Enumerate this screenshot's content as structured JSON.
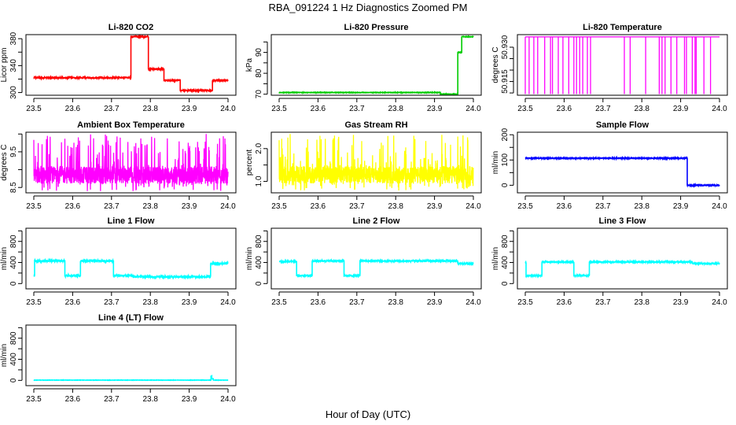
{
  "chart_data": {
    "title": "RBA_091224  1 Hz Diagnostics Zoomed PM",
    "xlabel": "Hour of Day (UTC)",
    "xlim": [
      23.5,
      24.0
    ],
    "xticks": [
      23.5,
      23.6,
      23.7,
      23.8,
      23.9,
      24.0
    ],
    "xtick_labels": [
      "23.5",
      "23.6",
      "23.7",
      "23.8",
      "23.9",
      "24.0"
    ],
    "panels": [
      {
        "type": "line",
        "title": "Li-820 CO2",
        "ylabel": "Licor ppm",
        "color": "#ff0000",
        "ylim": [
          296,
          386
        ],
        "yticks": [
          300,
          320,
          340,
          360,
          380
        ],
        "ytick_labels": [
          "300",
          "",
          "340",
          "",
          "380"
        ],
        "noise": 0.8,
        "segments": [
          [
            23.5,
            23.75,
            322
          ],
          [
            23.75,
            23.795,
            383
          ],
          [
            23.795,
            23.835,
            335
          ],
          [
            23.835,
            23.877,
            318
          ],
          [
            23.877,
            23.96,
            303
          ],
          [
            23.96,
            24.0,
            318
          ]
        ]
      },
      {
        "type": "line",
        "title": "Li-820 Pressure",
        "ylabel": "kPa",
        "color": "#00cc00",
        "ylim": [
          69.5,
          98.5
        ],
        "yticks": [
          70,
          75,
          80,
          85,
          90,
          95
        ],
        "ytick_labels": [
          "70",
          "",
          "80",
          "",
          "90",
          ""
        ],
        "noise": 0.1,
        "segments": [
          [
            23.5,
            23.915,
            70.8
          ],
          [
            23.915,
            23.96,
            70.0
          ],
          [
            23.96,
            23.97,
            90.0
          ],
          [
            23.97,
            24.0,
            97.5
          ]
        ]
      },
      {
        "type": "drops",
        "title": "Li-820 Temperature",
        "ylabel": "degrees C",
        "color": "#ff00ff",
        "ylim": [
          50.909,
          50.9355
        ],
        "yticks": [
          50.91,
          50.915,
          50.92,
          50.925,
          50.93
        ],
        "ytick_labels": [
          "",
          "50.915",
          "",
          "",
          "50.930"
        ],
        "baseline": 50.9345,
        "drop_value": 50.9095,
        "drops": [
          23.5,
          23.51,
          23.522,
          23.532,
          23.55,
          23.565,
          23.57,
          23.585,
          23.597,
          23.612,
          23.625,
          23.632,
          23.64,
          23.648,
          23.66,
          23.668,
          23.755,
          23.77,
          23.81,
          23.845,
          23.852,
          23.86,
          23.875,
          23.89,
          23.91,
          23.915,
          23.93,
          23.937,
          23.94,
          23.96,
          23.977
        ]
      },
      {
        "type": "spiky",
        "title": "Ambient Box Temperature",
        "ylabel": "degrees C",
        "color": "#ff00ff",
        "ylim": [
          8.35,
          10.05
        ],
        "yticks": [
          8.5,
          9.0,
          9.5,
          10.0
        ],
        "ytick_labels": [
          "8.5",
          "",
          "9.5",
          ""
        ],
        "baseline": 8.85,
        "low": 8.4,
        "high": 10.0
      },
      {
        "type": "spiky",
        "title": "Gas Stream RH",
        "ylabel": "percent",
        "color": "#ffff00",
        "ylim": [
          0.65,
          2.5
        ],
        "yticks": [
          1.0,
          1.5,
          2.0
        ],
        "ytick_labels": [
          "1.0",
          "",
          "2.0"
        ],
        "baseline": 1.2,
        "low": 0.72,
        "high": 2.45
      },
      {
        "type": "line",
        "title": "Sample Flow",
        "ylabel": "ml/min",
        "color": "#0000ff",
        "ylim": [
          -30,
          210
        ],
        "yticks": [
          0,
          50,
          100,
          150,
          200
        ],
        "ytick_labels": [
          "0",
          "",
          "100",
          "",
          "200"
        ],
        "noise": 1.5,
        "segments": [
          [
            23.5,
            23.917,
            107
          ],
          [
            23.917,
            24.0,
            0
          ]
        ]
      },
      {
        "type": "line",
        "title": "Line 1 Flow",
        "ylabel": "ml/min",
        "color": "#00ffff",
        "ylim": [
          -100,
          1050
        ],
        "yticks": [
          0,
          200,
          400,
          600,
          800,
          1000
        ],
        "ytick_labels": [
          "0",
          "",
          "400",
          "",
          "800",
          ""
        ],
        "noise": 20,
        "segments": [
          [
            23.5,
            23.502,
            150
          ],
          [
            23.502,
            23.58,
            430
          ],
          [
            23.58,
            23.62,
            150
          ],
          [
            23.62,
            23.705,
            430
          ],
          [
            23.705,
            23.755,
            150
          ],
          [
            23.755,
            23.955,
            130
          ],
          [
            23.955,
            24.0,
            380
          ]
        ]
      },
      {
        "type": "line",
        "title": "Line 2 Flow",
        "ylabel": "ml/min",
        "color": "#00ffff",
        "ylim": [
          -100,
          1050
        ],
        "yticks": [
          0,
          200,
          400,
          600,
          800,
          1000
        ],
        "ytick_labels": [
          "0",
          "",
          "400",
          "",
          "800",
          ""
        ],
        "noise": 10,
        "segments": [
          [
            23.5,
            23.545,
            420
          ],
          [
            23.545,
            23.585,
            150
          ],
          [
            23.585,
            23.667,
            430
          ],
          [
            23.667,
            23.708,
            150
          ],
          [
            23.708,
            23.96,
            430
          ],
          [
            23.96,
            24.0,
            380
          ]
        ]
      },
      {
        "type": "line",
        "title": "Line 3 Flow",
        "ylabel": "ml/min",
        "color": "#00ffff",
        "ylim": [
          -100,
          1050
        ],
        "yticks": [
          0,
          200,
          400,
          600,
          800,
          1000
        ],
        "ytick_labels": [
          "0",
          "",
          "400",
          "",
          "800",
          ""
        ],
        "noise": 10,
        "segments": [
          [
            23.5,
            23.502,
            390
          ],
          [
            23.502,
            23.543,
            150
          ],
          [
            23.543,
            23.625,
            410
          ],
          [
            23.625,
            23.665,
            150
          ],
          [
            23.665,
            23.93,
            410
          ],
          [
            23.93,
            24.0,
            380
          ]
        ]
      },
      {
        "type": "line",
        "title": "Line 4 (LT) Flow",
        "ylabel": "ml/min",
        "color": "#00ffff",
        "ylim": [
          -100,
          1050
        ],
        "yticks": [
          0,
          200,
          400,
          600,
          800,
          1000
        ],
        "ytick_labels": [
          "0",
          "",
          "400",
          "",
          "800",
          ""
        ],
        "noise": 2,
        "segments": [
          [
            23.5,
            23.956,
            5
          ],
          [
            23.956,
            23.958,
            80
          ],
          [
            23.958,
            23.962,
            30
          ],
          [
            23.962,
            24.0,
            5
          ]
        ]
      }
    ]
  }
}
